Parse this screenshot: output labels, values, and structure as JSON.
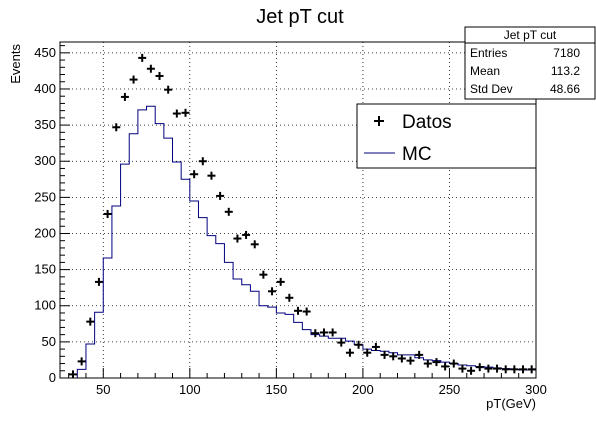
{
  "chart_data": {
    "type": "histogram",
    "title": "Jet pT cut",
    "xlabel": "pT(GeV)",
    "ylabel": "Events",
    "xlim": [
      25,
      300
    ],
    "ylim": [
      0,
      465
    ],
    "xticks": [
      50,
      100,
      150,
      200,
      250,
      300
    ],
    "xtick_labels": [
      "50",
      "100",
      "150",
      "200",
      "250",
      "300"
    ],
    "yticks": [
      0,
      50,
      100,
      150,
      200,
      250,
      300,
      350,
      400,
      450
    ],
    "ytick_labels": [
      "0",
      "50",
      "100",
      "150",
      "200",
      "250",
      "300",
      "350",
      "400",
      "450"
    ],
    "grid": true,
    "legend_position": "top-right",
    "stats_box": {
      "title": "Jet pT cut",
      "rows": [
        {
          "label": "Entries",
          "value": "7180"
        },
        {
          "label": "Mean",
          "value": "113.2"
        },
        {
          "label": "Std Dev",
          "value": "48.66"
        }
      ]
    },
    "series": [
      {
        "name": "Datos",
        "style": "markers",
        "color": "#000000",
        "x": [
          32.5,
          37.5,
          42.5,
          47.5,
          52.5,
          57.5,
          62.5,
          67.5,
          72.5,
          77.5,
          82.5,
          87.5,
          92.5,
          97.5,
          102.5,
          107.5,
          112.5,
          117.5,
          122.5,
          127.5,
          132.5,
          137.5,
          142.5,
          147.5,
          152.5,
          157.5,
          162.5,
          167.5,
          172.5,
          177.5,
          182.5,
          187.5,
          192.5,
          197.5,
          202.5,
          207.5,
          212.5,
          217.5,
          222.5,
          227.5,
          232.5,
          237.5,
          242.5,
          247.5,
          252.5,
          257.5,
          262.5,
          267.5,
          272.5,
          277.5,
          282.5,
          287.5,
          292.5,
          297.5
        ],
        "values": [
          5,
          23,
          78,
          133,
          227,
          347,
          389,
          413,
          443,
          428,
          418,
          399,
          366,
          367,
          282,
          300,
          280,
          252,
          230,
          193,
          198,
          185,
          143,
          120,
          133,
          111,
          93,
          92,
          62,
          63,
          63,
          49,
          35,
          46,
          35,
          43,
          32,
          30,
          27,
          24,
          32,
          20,
          22,
          16,
          20,
          13,
          10,
          15,
          13,
          13,
          12,
          12,
          12,
          12
        ]
      },
      {
        "name": "MC",
        "style": "step",
        "color": "#00007f",
        "bin_edges": [
          35,
          40,
          45,
          50,
          55,
          60,
          65,
          70,
          75,
          80,
          85,
          90,
          95,
          100,
          105,
          110,
          115,
          120,
          125,
          130,
          135,
          140,
          145,
          150,
          155,
          160,
          165,
          170,
          175,
          180,
          185,
          190,
          195,
          200,
          205,
          210,
          215,
          220,
          225,
          230,
          235,
          240,
          245,
          250,
          255,
          260,
          265,
          270,
          275,
          280,
          285,
          290,
          295,
          300
        ],
        "values": [
          12,
          47,
          91,
          166,
          238,
          296,
          338,
          371,
          376,
          352,
          332,
          299,
          275,
          245,
          222,
          197,
          186,
          160,
          137,
          129,
          120,
          100,
          98,
          90,
          88,
          77,
          67,
          60,
          58,
          55,
          55,
          51,
          46,
          40,
          38,
          37,
          35,
          32,
          32,
          28,
          25,
          24,
          22,
          20,
          18,
          17,
          16,
          15,
          14,
          13,
          12,
          11,
          11
        ]
      }
    ]
  }
}
